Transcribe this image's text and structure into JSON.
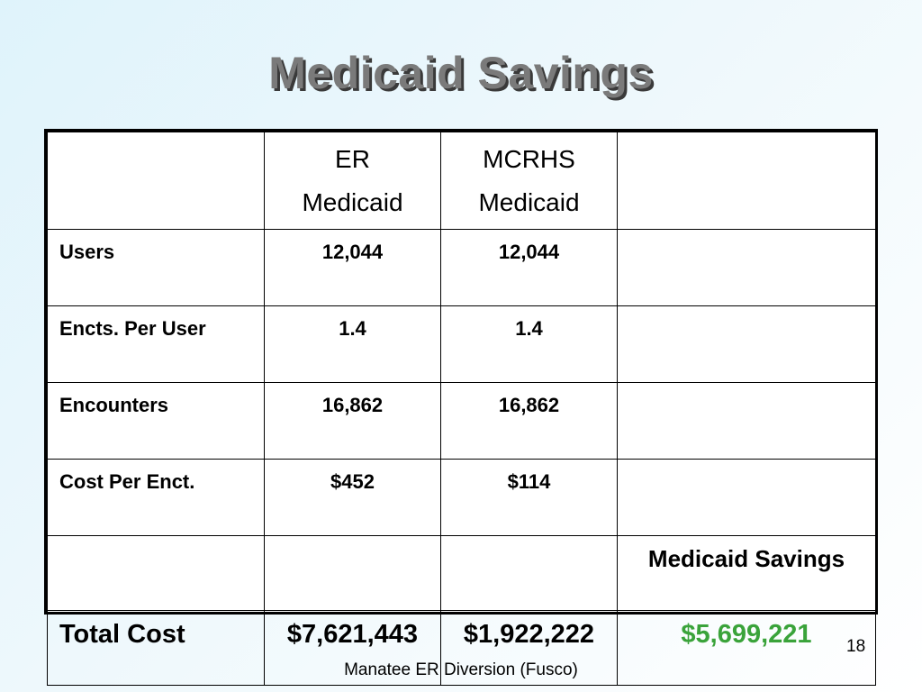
{
  "title": "Medicaid Savings",
  "table": {
    "headers": {
      "er": [
        "ER",
        "Medicaid"
      ],
      "mcrhs": [
        "MCRHS",
        "Medicaid"
      ]
    },
    "rows": [
      {
        "label": "Users",
        "er": "12,044",
        "mcrhs": "12,044"
      },
      {
        "label": "Encts. Per User",
        "er": "1.4",
        "mcrhs": "1.4"
      },
      {
        "label": "Encounters",
        "er": "16,862",
        "mcrhs": "16,862"
      },
      {
        "label": "Cost Per Enct.",
        "er": "$452",
        "mcrhs": "$114"
      }
    ],
    "savings_header": "Medicaid Savings",
    "total": {
      "label": "Total Cost",
      "er": "$7,621,443",
      "mcrhs": "$1,922,222",
      "savings": "$5,699,221"
    }
  },
  "page_number": "18",
  "footer": "Manatee ER Diversion (Fusco)",
  "colors": {
    "title": "#7a7a7a",
    "title_shadow": "#3a3a3a",
    "savings_value": "#3aa33a"
  }
}
